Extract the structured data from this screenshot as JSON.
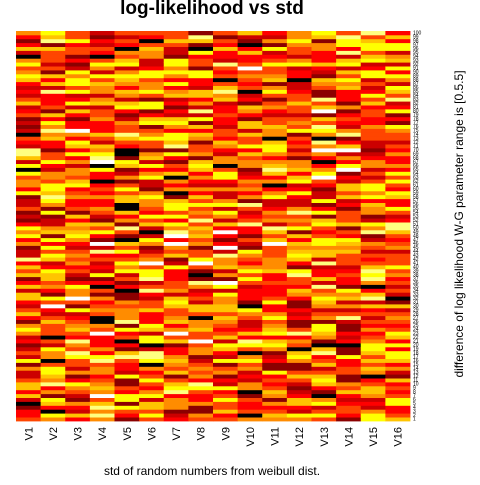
{
  "chart_data": {
    "type": "heatmap",
    "title": "log-likelihood vs std",
    "xlabel": "std of random numbers from weibull dist.",
    "ylabel": "difference of log likelihood W-G parameter range is [0.5.5]",
    "columns": [
      "V1",
      "V2",
      "V3",
      "V4",
      "V5",
      "V6",
      "V7",
      "V8",
      "V9",
      "V10",
      "V11",
      "V12",
      "V13",
      "V14",
      "V15",
      "V16"
    ],
    "row_labels": [
      "1",
      "2",
      "3",
      "4",
      "5",
      "6",
      "7",
      "8",
      "9",
      "10",
      "11",
      "12",
      "13",
      "14",
      "15",
      "16",
      "17",
      "18",
      "19",
      "20",
      "21",
      "22",
      "23",
      "24",
      "25",
      "26",
      "27",
      "28",
      "29",
      "30",
      "31",
      "32",
      "33",
      "34",
      "35",
      "36",
      "37",
      "38",
      "39",
      "40",
      "41",
      "42",
      "43",
      "44",
      "45",
      "46",
      "47",
      "48",
      "49",
      "50",
      "51",
      "52",
      "53",
      "54",
      "55",
      "56",
      "57",
      "58",
      "59",
      "60",
      "61",
      "62",
      "63",
      "64",
      "65",
      "66",
      "67",
      "68",
      "69",
      "70",
      "71",
      "72",
      "73",
      "74",
      "75",
      "76",
      "77",
      "78",
      "79",
      "80",
      "81",
      "82",
      "83",
      "84",
      "85",
      "86",
      "87",
      "88",
      "89",
      "90",
      "91",
      "92",
      "93",
      "94",
      "95",
      "96",
      "97",
      "98",
      "99",
      "100"
    ],
    "color_scale": [
      "#000000",
      "#8b0000",
      "#cc0000",
      "#ff0000",
      "#ff4500",
      "#ff8c00",
      "#ffc400",
      "#ffff00",
      "#ffff80",
      "#ffffff"
    ],
    "value_range": [
      0,
      9
    ],
    "legend": "none",
    "grid": false
  }
}
